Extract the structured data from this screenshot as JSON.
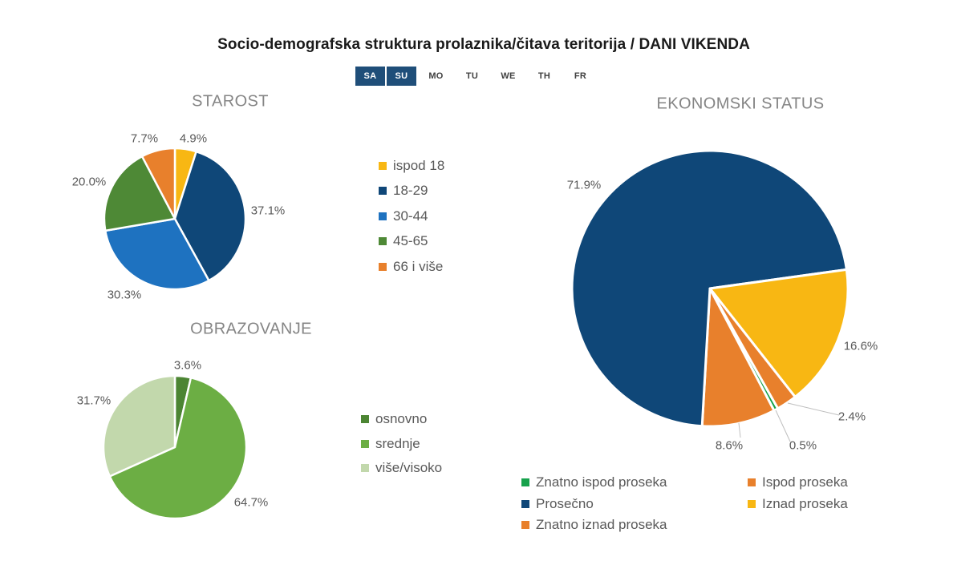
{
  "title": "Socio-demografska struktura prolaznika/čitava teritorija / DANI VIKENDA",
  "day_tabs": {
    "days": [
      {
        "label": "SA",
        "active": true
      },
      {
        "label": "SU",
        "active": true
      },
      {
        "label": "MO",
        "active": false
      },
      {
        "label": "TU",
        "active": false
      },
      {
        "label": "WE",
        "active": false
      },
      {
        "label": "TH",
        "active": false
      },
      {
        "label": "FR",
        "active": false
      }
    ],
    "active_bg": "#1F4E79",
    "active_text_color": "#FFFFFF",
    "inactive_text_color": "#3F3F3F"
  },
  "palette": {
    "chart_title_color": "#858585",
    "value_label_color": "#595959",
    "legend_text_color": "#595959",
    "slice_border_color": "#FFFFFF",
    "leader_line_color": "#BFBFBF"
  },
  "chart_data": [
    {
      "type": "pie",
      "title": "STAROST",
      "labels": [
        "ispod 18",
        "18-29",
        "30-44",
        "45-65",
        "66 i više"
      ],
      "values": [
        4.9,
        37.1,
        30.3,
        20.0,
        7.7
      ],
      "colors": [
        "#F8B713",
        "#0F4778",
        "#1E72C0",
        "#4E8936",
        "#E8802C"
      ],
      "value_label_format": "one_decimal_percent",
      "start_angle_deg": 0,
      "direction": "clockwise",
      "legend_position": "right"
    },
    {
      "type": "pie",
      "title": "OBRAZOVANJE",
      "labels": [
        "osnovno",
        "srednje",
        "više/visoko"
      ],
      "values": [
        3.6,
        64.7,
        31.7
      ],
      "colors": [
        "#4C8533",
        "#6CAE44",
        "#C2D8AC"
      ],
      "value_label_format": "one_decimal_percent",
      "start_angle_deg": 0,
      "direction": "clockwise",
      "legend_position": "right"
    },
    {
      "type": "pie",
      "title": "EKONOMSKI STATUS",
      "labels": [
        "Znatno ispod proseka",
        "Ispod proseka",
        "Prosečno",
        "Iznad proseka",
        "Znatno iznad proseka"
      ],
      "values": [
        0.5,
        8.6,
        71.9,
        16.6,
        2.4
      ],
      "colors": [
        "#17A24C",
        "#E8802C",
        "#0F4778",
        "#F8B713",
        "#E8802C"
      ],
      "value_label_format": "one_decimal_percent",
      "start_angle_deg": 150.5,
      "direction": "clockwise",
      "legend_position": "bottom",
      "legend_columns": [
        [
          0,
          2,
          4
        ],
        [
          1,
          3
        ]
      ]
    }
  ]
}
